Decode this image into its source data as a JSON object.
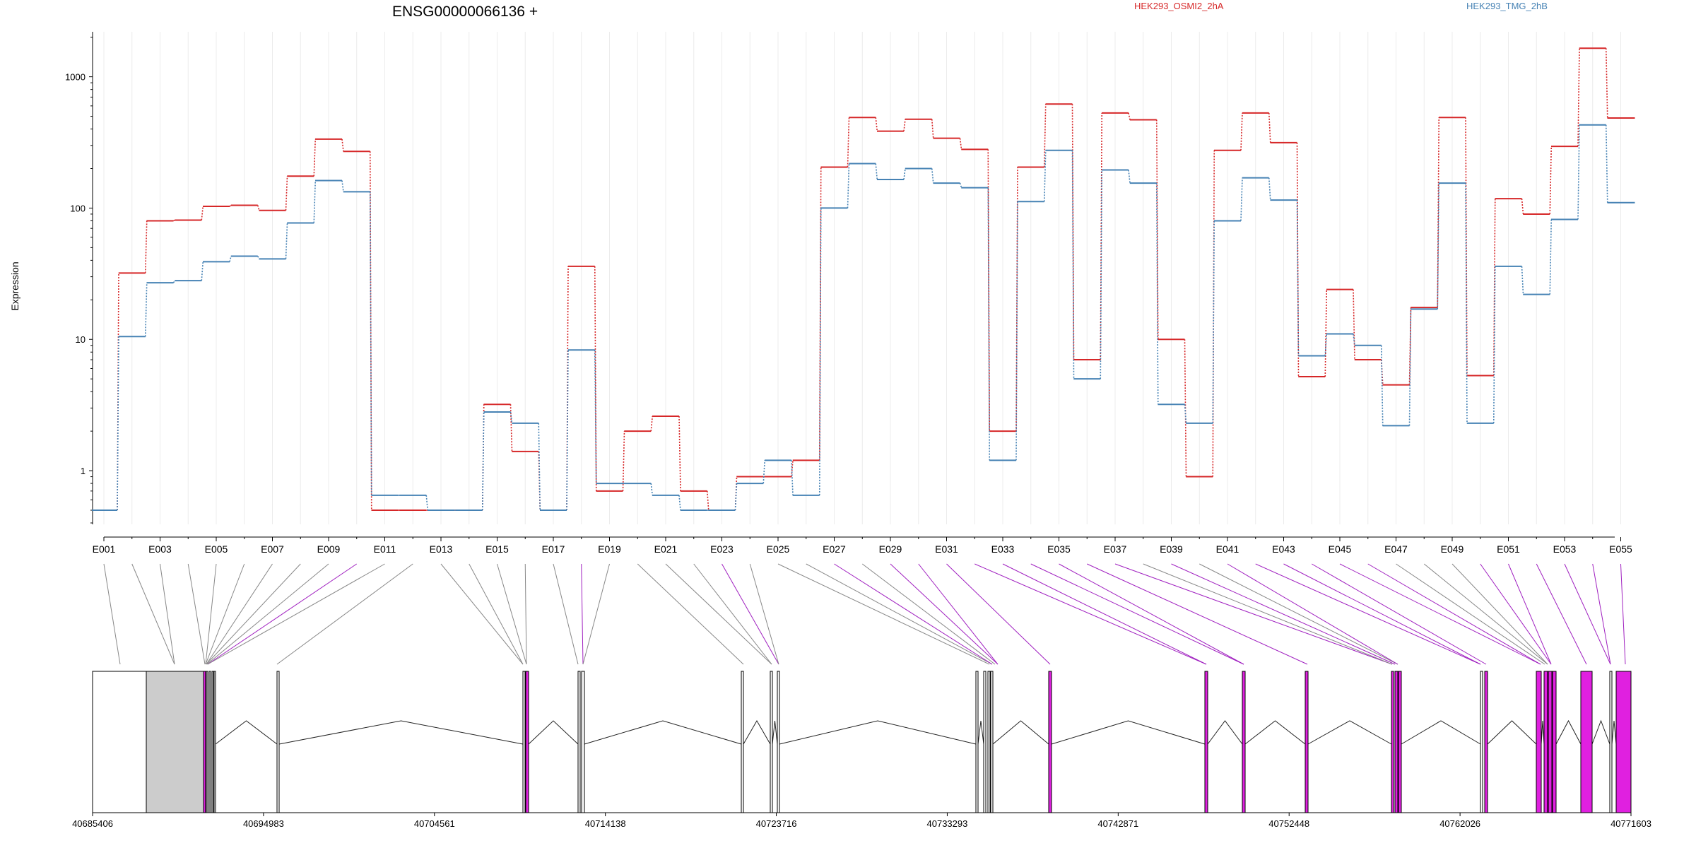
{
  "chart_data": {
    "type": "line",
    "title": "ENSG00000066136 +",
    "ylabel": "Expression",
    "yscale": "log",
    "ylim": [
      0.4,
      2200
    ],
    "yticks": [
      {
        "value": 1,
        "label": "1"
      },
      {
        "value": 10,
        "label": "10"
      },
      {
        "value": 100,
        "label": "100"
      },
      {
        "value": 1000,
        "label": "1000"
      }
    ],
    "categories": [
      "E001",
      "E002",
      "E003",
      "E004",
      "E005",
      "E006",
      "E007",
      "E008",
      "E009",
      "E010",
      "E011",
      "E012",
      "E013",
      "E014",
      "E015",
      "E016",
      "E017",
      "E018",
      "E019",
      "E020",
      "E021",
      "E022",
      "E023",
      "E024",
      "E025",
      "E026",
      "E027",
      "E028",
      "E029",
      "E030",
      "E031",
      "E032",
      "E033",
      "E034",
      "E035",
      "E036",
      "E037",
      "E038",
      "E039",
      "E040",
      "E041",
      "E042",
      "E043",
      "E044",
      "E045",
      "E046",
      "E047",
      "E048",
      "E049",
      "E050",
      "E051",
      "E052",
      "E053",
      "E054",
      "E055"
    ],
    "exon_labels_shown": [
      "E001",
      "E003",
      "E005",
      "E007",
      "E009",
      "E011",
      "E013",
      "E015",
      "E017",
      "E019",
      "E021",
      "E023",
      "E025",
      "E027",
      "E029",
      "E031",
      "E033",
      "E035",
      "E037",
      "E039",
      "E041",
      "E043",
      "E045",
      "E047",
      "E049",
      "E051",
      "E053",
      "E055"
    ],
    "series": [
      {
        "name": "HEK293_OSMI2_2hA",
        "color": "#d62728",
        "values": [
          0.5,
          32,
          80,
          81,
          103,
          105,
          96,
          175,
          335,
          270,
          0.5,
          0.5,
          0.5,
          0.5,
          3.2,
          1.4,
          0.5,
          36,
          0.7,
          2.0,
          2.6,
          0.7,
          0.5,
          0.9,
          0.9,
          1.2,
          205,
          490,
          385,
          475,
          340,
          280,
          2.0,
          205,
          620,
          7,
          530,
          470,
          10,
          0.9,
          275,
          530,
          315,
          5.2,
          24,
          7,
          4.5,
          17.5,
          490,
          5.3,
          118,
          90,
          295,
          1650,
          485
        ]
      },
      {
        "name": "HEK293_TMG_2hB",
        "color": "#4682b4",
        "values": [
          0.5,
          10.5,
          27,
          28,
          39,
          43,
          41,
          77,
          162,
          133,
          0.65,
          0.65,
          0.5,
          0.5,
          2.8,
          2.3,
          0.5,
          8.3,
          0.8,
          0.8,
          0.65,
          0.5,
          0.5,
          0.8,
          1.2,
          0.65,
          100,
          218,
          165,
          200,
          155,
          143,
          1.2,
          112,
          275,
          5,
          195,
          155,
          3.2,
          2.3,
          80,
          170,
          115,
          7.5,
          11,
          9,
          2.2,
          17,
          155,
          2.3,
          36,
          22,
          82,
          430,
          110
        ]
      }
    ],
    "genomic_axis": {
      "range": [
        40685406,
        40771603
      ],
      "tick_labels": [
        "40685406",
        "40694983",
        "40704561",
        "40714138",
        "40723716",
        "40733293",
        "40742871",
        "40752448",
        "40762026",
        "40771603"
      ]
    }
  }
}
